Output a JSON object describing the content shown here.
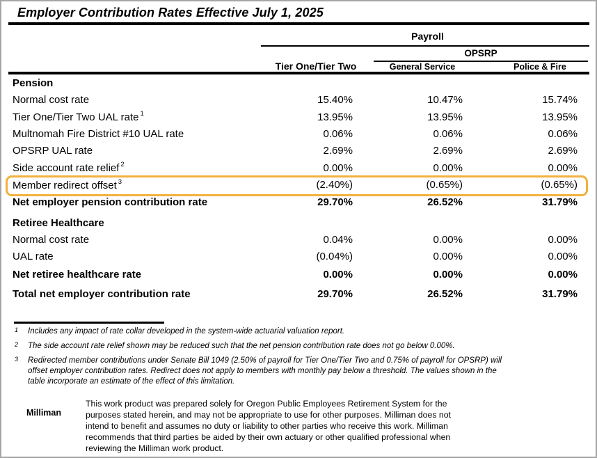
{
  "title": "Employer Contribution Rates Effective July 1, 2025",
  "table": {
    "group_header": "Payroll",
    "subgroup_header": "OPSRP",
    "columns": [
      "Tier One/Tier Two",
      "General Service",
      "Police & Fire"
    ],
    "sections": [
      {
        "name": "Pension",
        "rows": [
          {
            "label": "Normal cost rate",
            "sup": "",
            "values": [
              "15.40%",
              "10.47%",
              "15.74%"
            ],
            "style": "normal"
          },
          {
            "label": "Tier One/Tier Two UAL rate",
            "sup": "1",
            "values": [
              "13.95%",
              "13.95%",
              "13.95%"
            ],
            "style": "normal"
          },
          {
            "label": "Multnomah Fire District #10 UAL rate",
            "sup": "",
            "values": [
              "0.06%",
              "0.06%",
              "0.06%"
            ],
            "style": "normal"
          },
          {
            "label": "OPSRP UAL rate",
            "sup": "",
            "values": [
              "2.69%",
              "2.69%",
              "2.69%"
            ],
            "style": "normal"
          },
          {
            "label": "Side account rate relief",
            "sup": "2",
            "values": [
              "0.00%",
              "0.00%",
              "0.00%"
            ],
            "style": "normal"
          },
          {
            "label": "Member redirect offset",
            "sup": "3",
            "values": [
              "(2.40%)",
              "(0.65%)",
              "(0.65%)"
            ],
            "style": "normal",
            "highlighted": true
          },
          {
            "label": "Net employer pension contribution rate",
            "sup": "",
            "values": [
              "29.70%",
              "26.52%",
              "31.79%"
            ],
            "style": "net"
          }
        ]
      },
      {
        "name": "Retiree Healthcare",
        "rows": [
          {
            "label": "Normal cost rate",
            "sup": "",
            "values": [
              "0.04%",
              "0.00%",
              "0.00%"
            ],
            "style": "normal"
          },
          {
            "label": "UAL rate",
            "sup": "",
            "values": [
              "(0.04%)",
              "0.00%",
              "0.00%"
            ],
            "style": "normal"
          },
          {
            "label": "Net retiree healthcare rate",
            "sup": "",
            "values": [
              "0.00%",
              "0.00%",
              "0.00%"
            ],
            "style": "net"
          }
        ]
      }
    ],
    "total_row": {
      "label": "Total net employer contribution rate",
      "sup": "",
      "values": [
        "29.70%",
        "26.52%",
        "31.79%"
      ],
      "style": "total"
    }
  },
  "footnotes": [
    {
      "marker": "1",
      "lines": [
        "Includes any impact of rate collar developed in the system-wide actuarial valuation report."
      ]
    },
    {
      "marker": "2",
      "lines": [
        "The side account rate relief shown may be reduced such that the net pension contribution rate does not go below 0.00%."
      ]
    },
    {
      "marker": "3",
      "lines": [
        "Redirected member contributions under Senate Bill 1049 (2.50% of payroll for Tier One/Tier Two and 0.75% of payroll for OPSRP) will",
        "offset employer contribution rates. Redirect does not apply to members with monthly pay below a threshold. The values shown in the",
        "table incorporate an estimate of the effect of this limitation."
      ]
    }
  ],
  "disclaimer": {
    "brand": "Milliman",
    "lines": [
      "This work product was prepared solely for Oregon Public Employees Retirement System for the",
      "purposes stated herein, and may not be appropriate to use for other purposes.  Milliman does not",
      "intend to benefit and assumes no duty or liability to other parties who receive this work.  Milliman",
      "recommends that third parties be aided by their own actuary or other qualified professional when",
      "reviewing the Milliman work product."
    ]
  },
  "colors": {
    "highlight_border": "#F2B13E",
    "rule": "#000000",
    "page_border": "#A6A6A6"
  }
}
